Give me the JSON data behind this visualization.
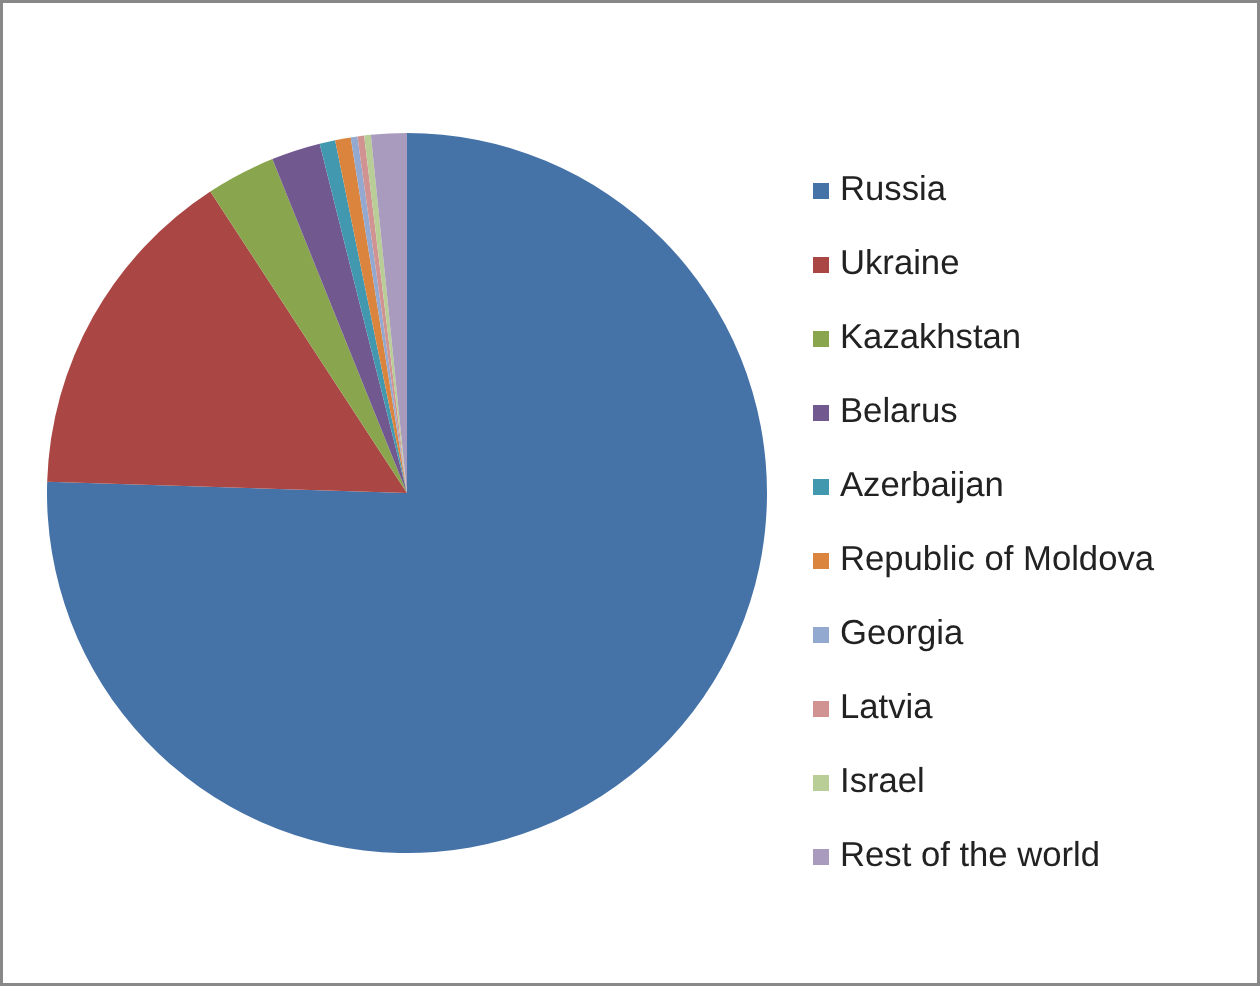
{
  "chart_data": {
    "type": "pie",
    "categories": [
      "Russia",
      "Ukraine",
      "Kazakhstan",
      "Belarus",
      "Azerbaijan",
      "Republic of Moldova",
      "Georgia",
      "Latvia",
      "Israel",
      "Rest of the world"
    ],
    "values": [
      75.5,
      15.3,
      3.1,
      2.2,
      0.7,
      0.7,
      0.3,
      0.3,
      0.3,
      1.6
    ],
    "colors": [
      "#4572a7",
      "#aa4643",
      "#89a54e",
      "#71588f",
      "#4198af",
      "#db843d",
      "#93a9cf",
      "#d19392",
      "#b9cd96",
      "#a99bbd"
    ],
    "legend": "right"
  }
}
